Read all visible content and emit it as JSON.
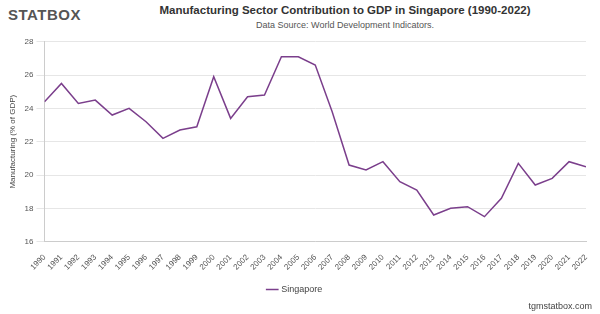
{
  "chart_data": {
    "type": "line",
    "title": "Manufacturing Sector Contribution to GDP in Singapore (1990-2022)",
    "subtitle": "Data Source: World Development Indicators.",
    "annotations": [
      "STATBOX",
      "tgmstatbox.com"
    ],
    "y_label": "Manufacturing (% of GDP)",
    "categories": [
      "1990",
      "1991",
      "1992",
      "1993",
      "1994",
      "1995",
      "1996",
      "1997",
      "1998",
      "1999",
      "2000",
      "2001",
      "2002",
      "2003",
      "2004",
      "2005",
      "2006",
      "2007",
      "2008",
      "2009",
      "2010",
      "2011",
      "2012",
      "2013",
      "2014",
      "2015",
      "2016",
      "2017",
      "2018",
      "2019",
      "2020",
      "2021",
      "2022"
    ],
    "series": [
      {
        "name": "Singapore",
        "color": "#7b3f8c",
        "values": [
          24.4,
          25.5,
          24.3,
          24.5,
          23.6,
          24.0,
          23.2,
          22.2,
          22.7,
          22.9,
          25.9,
          23.4,
          24.7,
          24.8,
          27.1,
          27.1,
          26.6,
          23.8,
          20.6,
          20.3,
          20.8,
          19.6,
          19.1,
          17.6,
          18.0,
          18.1,
          17.5,
          18.6,
          20.7,
          19.4,
          19.8,
          20.8,
          20.5
        ]
      }
    ],
    "ylim": [
      16,
      28
    ],
    "yticks": [
      16,
      18,
      20,
      22,
      24,
      26,
      28
    ],
    "grid": true,
    "legend": "bottom"
  }
}
